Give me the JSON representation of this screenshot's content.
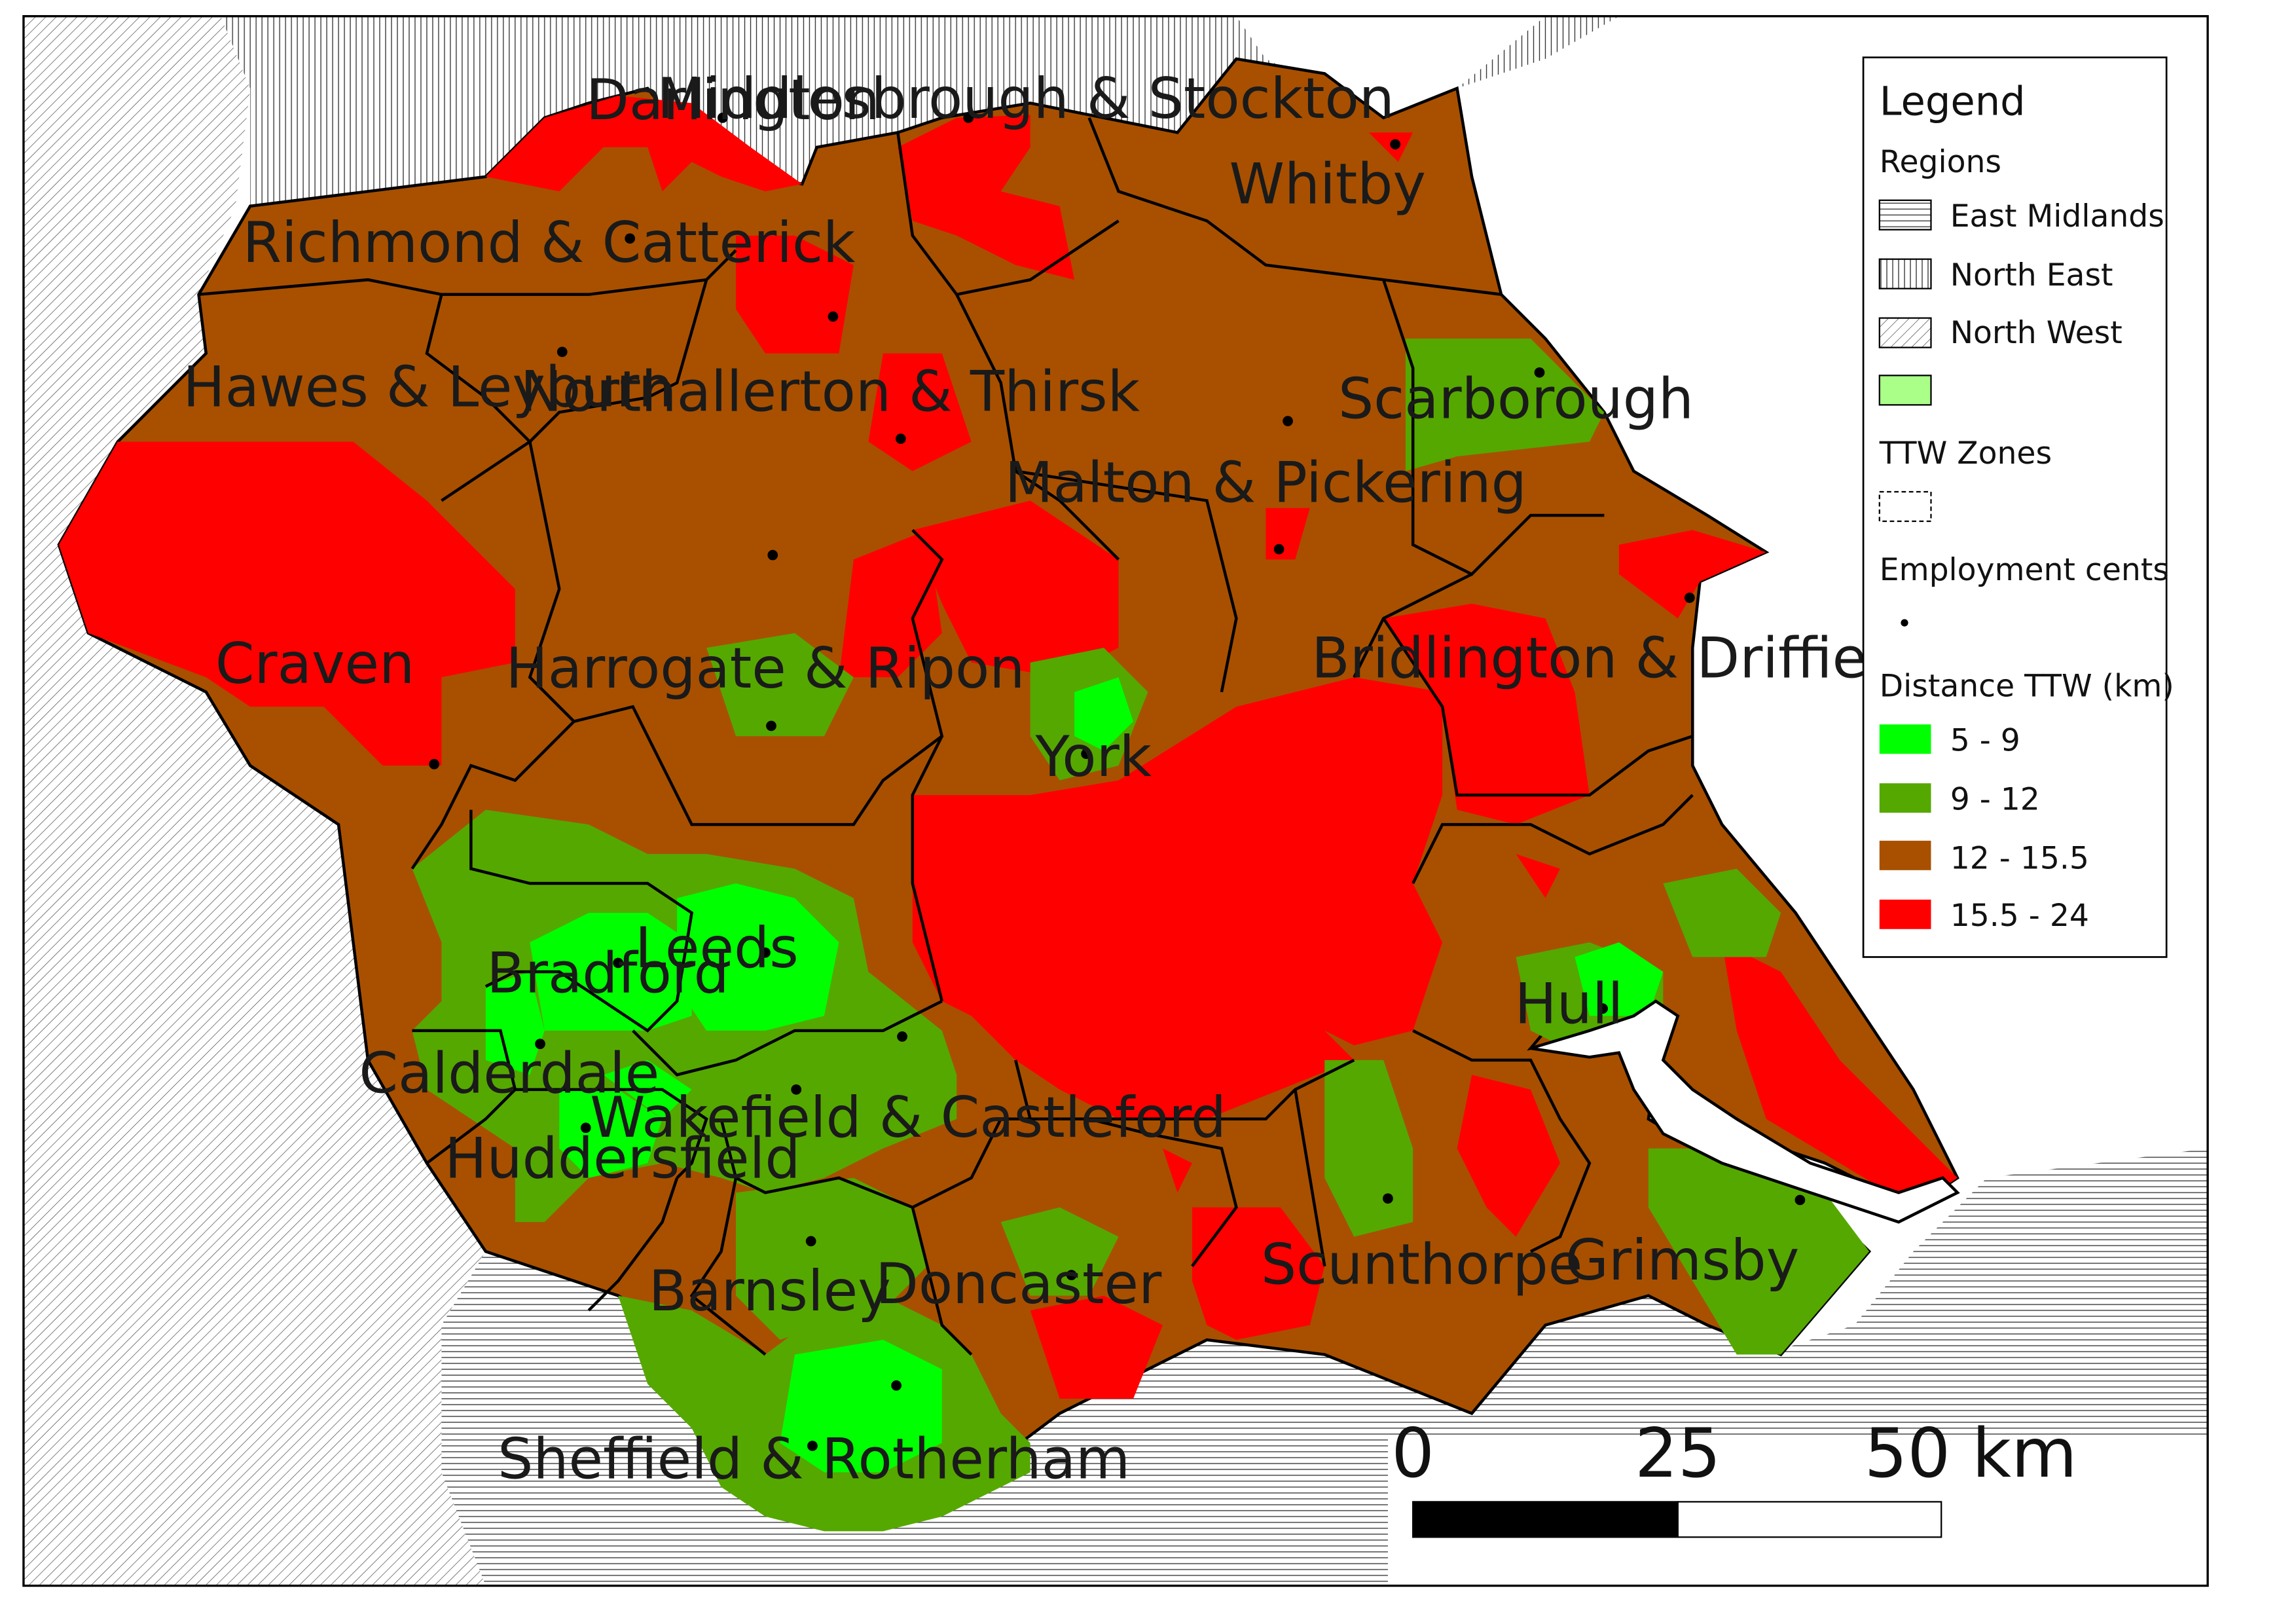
{
  "map": {
    "zone_labels": [
      {
        "id": "darlington",
        "text": "Darlington"
      },
      {
        "id": "middlesbrough",
        "text": "Middlesbrough & Stockton"
      },
      {
        "id": "whitby",
        "text": "Whitby"
      },
      {
        "id": "richmond",
        "text": "Richmond & Catterick"
      },
      {
        "id": "hawes",
        "text": "Hawes & Leyburn"
      },
      {
        "id": "northallerton",
        "text": "Northallerton & Thirsk"
      },
      {
        "id": "scarborough",
        "text": "Scarborough"
      },
      {
        "id": "malton",
        "text": "Malton & Pickering"
      },
      {
        "id": "craven",
        "text": "Craven"
      },
      {
        "id": "harrogate",
        "text": "Harrogate & Ripon"
      },
      {
        "id": "bridlington",
        "text": "Bridlington & Driffield"
      },
      {
        "id": "york",
        "text": "York"
      },
      {
        "id": "bradford",
        "text": "Bradford"
      },
      {
        "id": "leeds",
        "text": "Leeds"
      },
      {
        "id": "hull",
        "text": "Hull"
      },
      {
        "id": "calderdale",
        "text": "Calderdale"
      },
      {
        "id": "wakefield",
        "text": "Wakefield & Castleford"
      },
      {
        "id": "huddersfield",
        "text": "Huddersfield"
      },
      {
        "id": "scunthorpe",
        "text": "Scunthorpe"
      },
      {
        "id": "grimsby",
        "text": "Grimsby"
      },
      {
        "id": "doncaster",
        "text": "Doncaster"
      },
      {
        "id": "barnsley",
        "text": "Barnsley"
      },
      {
        "id": "sheffield",
        "text": "Sheffield & Rotherham"
      }
    ]
  },
  "legend": {
    "title": "Legend",
    "regions_heading": "Regions",
    "regions": [
      {
        "label": "East Midlands",
        "pattern": "horizontal-hatch"
      },
      {
        "label": "North East",
        "pattern": "vertical-hatch"
      },
      {
        "label": "North West",
        "pattern": "diagonal-hatch"
      },
      {
        "label": "",
        "pattern": "light-green-fill",
        "color": "#aaff88"
      }
    ],
    "ttw_heading": "TTW Zones",
    "employment_heading": "Employment cents",
    "distance_heading": "Distance TTW (km)",
    "classes": [
      {
        "label": "5 - 9",
        "color": "#00ff00"
      },
      {
        "label": "9 - 12",
        "color": "#55a800"
      },
      {
        "label": "12 - 15.5",
        "color": "#a85000"
      },
      {
        "label": "15.5 - 24",
        "color": "#ff0000"
      }
    ]
  },
  "scale_bar": {
    "labels": [
      "0",
      "25",
      "50 km"
    ]
  },
  "colors": {
    "bright_green": "#00ff00",
    "green": "#55a800",
    "brown": "#a85000",
    "red": "#ff0000"
  }
}
